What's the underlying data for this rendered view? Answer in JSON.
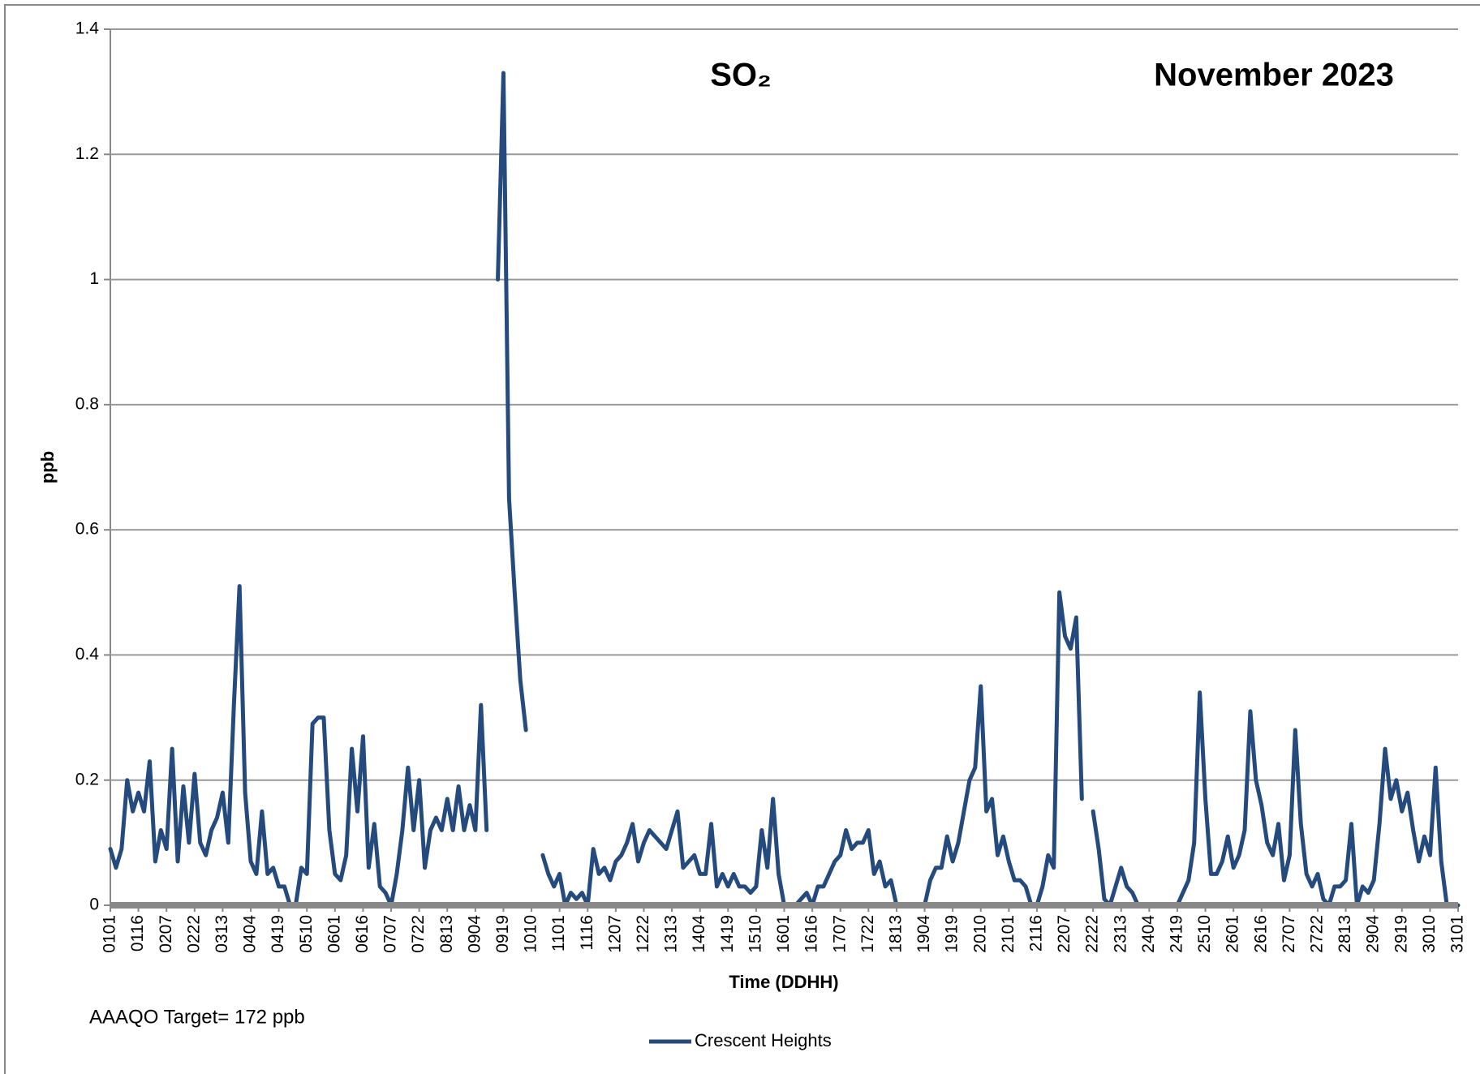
{
  "chart_data": {
    "type": "line",
    "title": "SO₂",
    "subtitle": "November 2023",
    "y_label": "ppb",
    "x_label": "Time (DDHH)",
    "annotation": "AAAQO Target= 172 ppb",
    "ylim": [
      0,
      1.4
    ],
    "yticks": [
      0,
      0.2,
      0.4,
      0.6,
      0.8,
      1,
      1.2,
      1.4
    ],
    "grid": true,
    "legend": "bottom",
    "categories": [
      "0101",
      null,
      null,
      null,
      null,
      "0116",
      null,
      null,
      null,
      null,
      "0207",
      null,
      null,
      null,
      null,
      "0222",
      null,
      null,
      null,
      null,
      "0313",
      null,
      null,
      null,
      null,
      "0404",
      null,
      null,
      null,
      null,
      "0419",
      null,
      null,
      null,
      null,
      "0510",
      null,
      null,
      null,
      null,
      "0601",
      null,
      null,
      null,
      null,
      "0616",
      null,
      null,
      null,
      null,
      "0707",
      null,
      null,
      null,
      null,
      "0722",
      null,
      null,
      null,
      null,
      "0813",
      null,
      null,
      null,
      null,
      "0904",
      null,
      null,
      null,
      null,
      "0919",
      null,
      null,
      null,
      null,
      "1010",
      null,
      null,
      null,
      null,
      "1101",
      null,
      null,
      null,
      null,
      "1116",
      null,
      null,
      null,
      null,
      "1207",
      null,
      null,
      null,
      null,
      "1222",
      null,
      null,
      null,
      null,
      "1313",
      null,
      null,
      null,
      null,
      "1404",
      null,
      null,
      null,
      null,
      "1419",
      null,
      null,
      null,
      null,
      "1510",
      null,
      null,
      null,
      null,
      "1601",
      null,
      null,
      null,
      null,
      "1616",
      null,
      null,
      null,
      null,
      "1707",
      null,
      null,
      null,
      null,
      "1722",
      null,
      null,
      null,
      null,
      "1813",
      null,
      null,
      null,
      null,
      "1904",
      null,
      null,
      null,
      null,
      "1919",
      null,
      null,
      null,
      null,
      "2010",
      null,
      null,
      null,
      null,
      "2101",
      null,
      null,
      null,
      null,
      "2116",
      null,
      null,
      null,
      null,
      "2207",
      null,
      null,
      null,
      null,
      "2222",
      null,
      null,
      null,
      null,
      "2313",
      null,
      null,
      null,
      null,
      "2404",
      null,
      null,
      null,
      null,
      "2419",
      null,
      null,
      null,
      null,
      "2510",
      null,
      null,
      null,
      null,
      "2601",
      null,
      null,
      null,
      null,
      "2616",
      null,
      null,
      null,
      null,
      "2707",
      null,
      null,
      null,
      null,
      "2722",
      null,
      null,
      null,
      null,
      "2813",
      null,
      null,
      null,
      null,
      "2904",
      null,
      null,
      null,
      null,
      "2919",
      null,
      null,
      null,
      null,
      "3010",
      null,
      null,
      null,
      null,
      "3101"
    ],
    "series": [
      {
        "name": "Crescent Heights",
        "color": "#254a7d",
        "values": [
          0.09,
          0.06,
          0.09,
          0.2,
          0.15,
          0.18,
          0.15,
          0.23,
          0.07,
          0.12,
          0.09,
          0.25,
          0.07,
          0.19,
          0.1,
          0.21,
          0.1,
          0.08,
          0.12,
          0.14,
          0.18,
          0.1,
          0.32,
          0.51,
          0.18,
          0.07,
          0.05,
          0.15,
          0.05,
          0.06,
          0.03,
          0.03,
          0.0,
          0.0,
          0.06,
          0.05,
          0.29,
          0.3,
          0.3,
          0.12,
          0.05,
          0.04,
          0.08,
          0.25,
          0.15,
          0.27,
          0.06,
          0.13,
          0.03,
          0.02,
          0.0,
          0.05,
          0.12,
          0.22,
          0.12,
          0.2,
          0.06,
          0.12,
          0.14,
          0.12,
          0.17,
          0.12,
          0.19,
          0.12,
          0.16,
          0.12,
          0.32,
          0.12,
          null,
          1.0,
          1.33,
          0.65,
          0.5,
          0.36,
          0.28,
          null,
          null,
          0.08,
          0.05,
          0.03,
          0.05,
          0.0,
          0.02,
          0.01,
          0.02,
          0.0,
          0.09,
          0.05,
          0.06,
          0.04,
          0.07,
          0.08,
          0.1,
          0.13,
          0.07,
          0.1,
          0.12,
          0.11,
          0.1,
          0.09,
          0.12,
          0.15,
          0.06,
          0.07,
          0.08,
          0.05,
          0.05,
          0.13,
          0.03,
          0.05,
          0.03,
          0.05,
          0.03,
          0.03,
          0.02,
          0.03,
          0.12,
          0.06,
          0.17,
          0.05,
          0.0,
          0.0,
          0.0,
          0.01,
          0.02,
          0.0,
          0.03,
          0.03,
          0.05,
          0.07,
          0.08,
          0.12,
          0.09,
          0.1,
          0.1,
          0.12,
          0.05,
          0.07,
          0.03,
          0.04,
          0.0,
          0.0,
          0.0,
          0.0,
          0.0,
          0.0,
          0.04,
          0.06,
          0.06,
          0.11,
          0.07,
          0.1,
          0.15,
          0.2,
          0.22,
          0.35,
          0.15,
          0.17,
          0.08,
          0.11,
          0.07,
          0.04,
          0.04,
          0.03,
          0.0,
          0.0,
          0.03,
          0.08,
          0.06,
          0.5,
          0.43,
          0.41,
          0.46,
          0.17,
          null,
          0.15,
          0.09,
          0.01,
          0.0,
          0.03,
          0.06,
          0.03,
          0.02,
          0.0,
          0.0,
          0.0,
          0.0,
          0.0,
          0.0,
          0.0,
          0.0,
          0.02,
          0.04,
          0.1,
          0.34,
          0.17,
          0.05,
          0.05,
          0.07,
          0.11,
          0.06,
          0.08,
          0.12,
          0.31,
          0.2,
          0.16,
          0.1,
          0.08,
          0.13,
          0.04,
          0.08,
          0.28,
          0.13,
          0.05,
          0.03,
          0.05,
          0.01,
          0.0,
          0.03,
          0.03,
          0.04,
          0.13,
          0.0,
          0.03,
          0.02,
          0.04,
          0.13,
          0.25,
          0.17,
          0.2,
          0.15,
          0.18,
          0.12,
          0.07,
          0.11,
          0.08,
          0.22,
          0.07,
          0.0,
          0.0,
          0.0
        ]
      }
    ]
  }
}
